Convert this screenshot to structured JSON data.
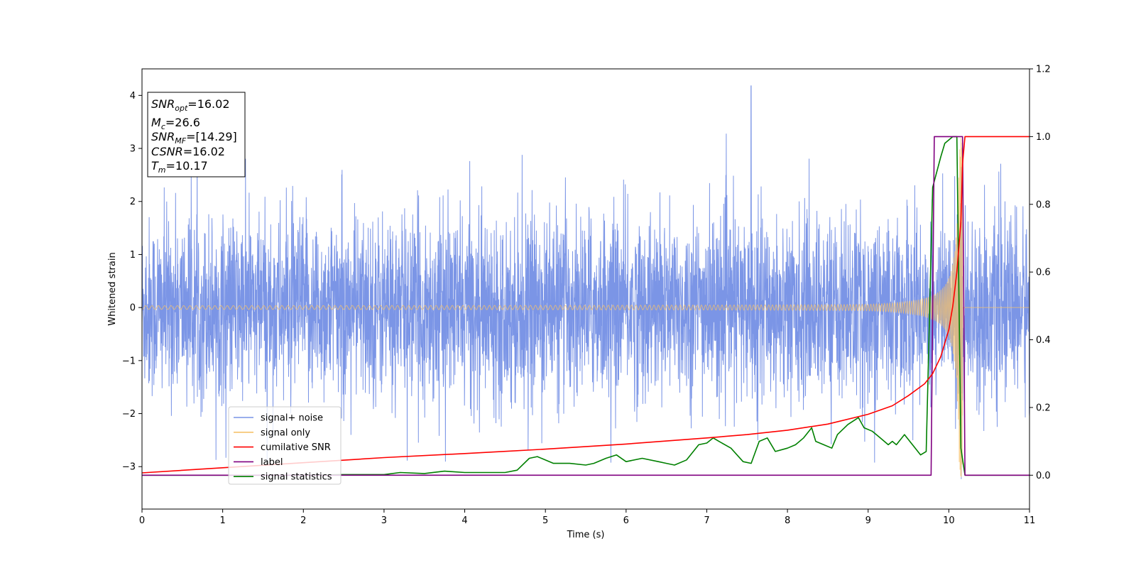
{
  "chart_data": {
    "type": "line",
    "xlabel": "Time (s)",
    "ylabel": "Whitened strain",
    "xlim": [
      0,
      11
    ],
    "ylim": [
      -3.8,
      4.5
    ],
    "y2lim": [
      -0.1,
      1.2
    ],
    "xticks": [
      "0",
      "1",
      "2",
      "3",
      "4",
      "5",
      "6",
      "7",
      "8",
      "9",
      "10",
      "11"
    ],
    "yticks": [
      "−3",
      "−2",
      "−1",
      "0",
      "1",
      "2",
      "3",
      "4"
    ],
    "y2ticks": [
      "0.0",
      "0.2",
      "0.4",
      "0.6",
      "0.8",
      "1.0",
      "1.2"
    ],
    "grid": false,
    "legend_position": "lower-left",
    "info_box": {
      "snr_opt": {
        "base": "SNR",
        "sub": "opt",
        "value": "=16.02"
      },
      "mc": {
        "base": "M",
        "sub": "c",
        "value": "=26.6"
      },
      "snr_mf": {
        "base": "SNR",
        "sub": "MF",
        "value": "=[14.29]"
      },
      "csnr": {
        "base": "CSNR",
        "value": "=16.02"
      },
      "tm": {
        "base": "T",
        "sub": "m",
        "value": "=10.17"
      }
    },
    "series": [
      {
        "name": "signal+ noise",
        "color": "#7893e6",
        "axis": "left",
        "description": "noisy whitened strain, approx. amplitude ±1.5 with spikes to ±2.9, peak 4.18 at t=7.55"
      },
      {
        "name": "signal only",
        "color": "#f5c26b",
        "axis": "left",
        "description": "chirp oscillating around 0, amplitude growing to ~3.2 at t=10.15, zero after 10.17"
      },
      {
        "name": "cumilative SNR",
        "color": "#ff0000",
        "axis": "right",
        "x": [
          0,
          1,
          2,
          3,
          4,
          5,
          6,
          7,
          7.5,
          8,
          8.5,
          9,
          9.3,
          9.5,
          9.7,
          9.8,
          9.9,
          10.0,
          10.05,
          10.1,
          10.15,
          10.17,
          10.2,
          11
        ],
        "y": [
          0.007,
          0.022,
          0.037,
          0.052,
          0.064,
          0.077,
          0.092,
          0.11,
          0.12,
          0.133,
          0.151,
          0.18,
          0.205,
          0.235,
          0.27,
          0.3,
          0.35,
          0.43,
          0.5,
          0.6,
          0.75,
          0.92,
          1.0,
          1.0
        ]
      },
      {
        "name": "label",
        "color": "#800080",
        "axis": "right",
        "x": [
          0,
          9.78,
          9.82,
          10.17,
          10.2,
          11
        ],
        "y": [
          0,
          0,
          1,
          1,
          0,
          0
        ]
      },
      {
        "name": "signal statistics",
        "color": "#008000",
        "axis": "right",
        "x": [
          0,
          1,
          2,
          2.5,
          3,
          3.2,
          3.5,
          3.75,
          4,
          4.5,
          4.65,
          4.8,
          4.9,
          5.1,
          5.3,
          5.5,
          5.6,
          5.75,
          5.88,
          6.0,
          6.2,
          6.4,
          6.5,
          6.6,
          6.75,
          6.9,
          7.0,
          7.08,
          7.15,
          7.3,
          7.45,
          7.55,
          7.65,
          7.75,
          7.85,
          8.0,
          8.1,
          8.2,
          8.3,
          8.35,
          8.45,
          8.55,
          8.62,
          8.75,
          8.88,
          8.95,
          9.05,
          9.15,
          9.25,
          9.3,
          9.35,
          9.45,
          9.55,
          9.65,
          9.72,
          9.8,
          9.9,
          9.95,
          10.05,
          10.1,
          10.15,
          10.2,
          10.3,
          11
        ],
        "y": [
          0,
          0,
          0,
          0.002,
          0.002,
          0.008,
          0.005,
          0.012,
          0.008,
          0.008,
          0.015,
          0.05,
          0.055,
          0.035,
          0.035,
          0.03,
          0.035,
          0.05,
          0.06,
          0.04,
          0.05,
          0.04,
          0.035,
          0.03,
          0.045,
          0.09,
          0.095,
          0.11,
          0.1,
          0.08,
          0.04,
          0.035,
          0.1,
          0.11,
          0.07,
          0.08,
          0.09,
          0.11,
          0.14,
          0.1,
          0.09,
          0.08,
          0.12,
          0.15,
          0.17,
          0.14,
          0.13,
          0.11,
          0.09,
          0.1,
          0.09,
          0.12,
          0.09,
          0.06,
          0.07,
          0.85,
          0.94,
          0.98,
          1.0,
          1.0,
          0.08,
          0.0,
          0.0,
          0.0
        ]
      }
    ]
  }
}
